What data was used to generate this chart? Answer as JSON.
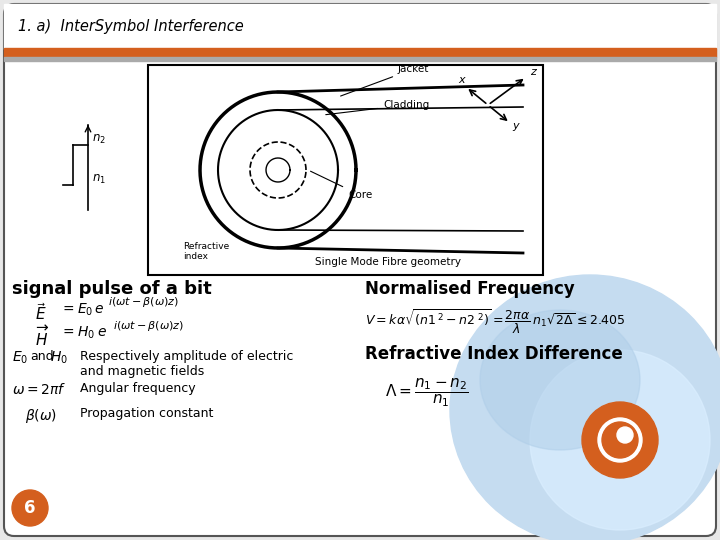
{
  "title": "1. a)  InterSymbol Interference",
  "bg_color": "#e8e8e8",
  "header_bg": "#ffffff",
  "orange_bar_color": "#d45f1e",
  "orange_bar2_color": "#b0b0b0",
  "slide_number": "6",
  "slide_number_bg": "#d45f1e",
  "left_heading": "signal pulse of a bit",
  "right_heading1": "Normalised Frequency",
  "right_heading2": "Refractive Index Difference"
}
